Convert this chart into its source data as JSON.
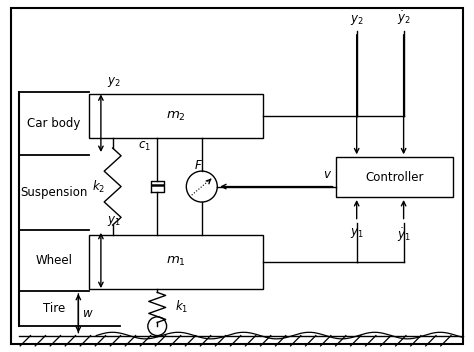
{
  "fig_width": 4.74,
  "fig_height": 3.52,
  "dpi": 100,
  "bg_color": "#ffffff",
  "line_color": "#000000",
  "labels": {
    "car_body": "Car body",
    "suspension": "Suspension",
    "wheel": "Wheel",
    "tire": "Tire",
    "m1": "$m_1$",
    "m2": "$m_2$",
    "k1": "$k_1$",
    "k2": "$k_2$",
    "c1": "$c_1$",
    "F": "$F$",
    "v": "$v$",
    "w": "$w$",
    "y1": "$y_1$",
    "y2": "$y_2$",
    "y1dot": "$\\dot{y}_1$",
    "y2dot": "$\\dot{y}_2$",
    "controller": "Controller"
  },
  "fontsize": 8.5
}
